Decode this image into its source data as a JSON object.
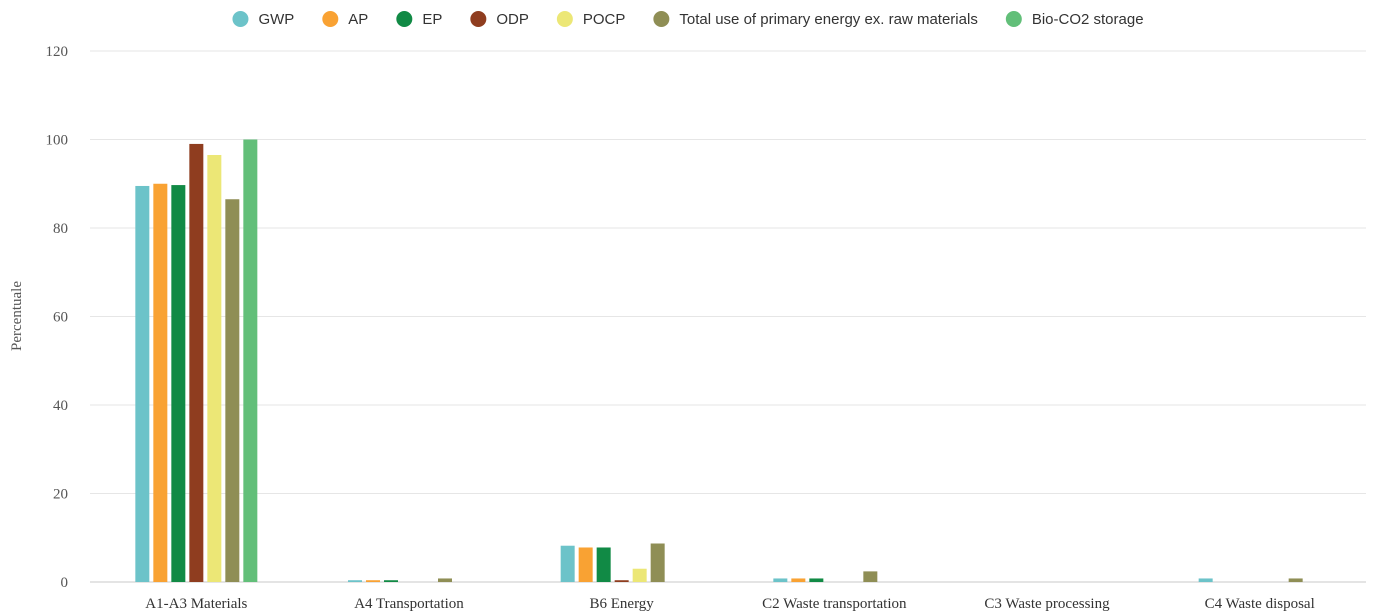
{
  "chart_data": {
    "type": "bar",
    "title": "",
    "xlabel": "",
    "ylabel": "Percentuale",
    "ylim": [
      0,
      120
    ],
    "yticks": [
      0,
      20,
      40,
      60,
      80,
      100,
      120
    ],
    "grid": true,
    "legend_position": "top",
    "categories": [
      "A1-A3 Materials",
      "A4 Transportation",
      "B6 Energy",
      "C2 Waste transportation",
      "C3 Waste processing",
      "C4 Waste disposal"
    ],
    "series": [
      {
        "name": "GWP",
        "color": "#6cc3c9",
        "values": [
          89.5,
          0.4,
          8.2,
          0.8,
          0.0,
          0.8
        ]
      },
      {
        "name": "AP",
        "color": "#f9a233",
        "values": [
          90.0,
          0.4,
          7.8,
          0.8,
          0.0,
          0.0
        ]
      },
      {
        "name": "EP",
        "color": "#118a45",
        "values": [
          89.7,
          0.4,
          7.8,
          0.8,
          0.0,
          0.0
        ]
      },
      {
        "name": "ODP",
        "color": "#8f3d1f",
        "values": [
          99.0,
          0.0,
          0.4,
          0.0,
          0.0,
          0.0
        ]
      },
      {
        "name": "POCP",
        "color": "#ece776",
        "values": [
          96.5,
          0.0,
          3.0,
          0.0,
          0.0,
          0.0
        ]
      },
      {
        "name": "Total use of primary energy ex. raw materials",
        "color": "#8f8e55",
        "values": [
          86.5,
          0.8,
          8.7,
          2.4,
          0.0,
          0.8
        ]
      },
      {
        "name": "Bio-CO2 storage",
        "color": "#62bf79",
        "values": [
          100.0,
          0.0,
          0.0,
          0.0,
          0.0,
          0.0
        ]
      }
    ]
  }
}
